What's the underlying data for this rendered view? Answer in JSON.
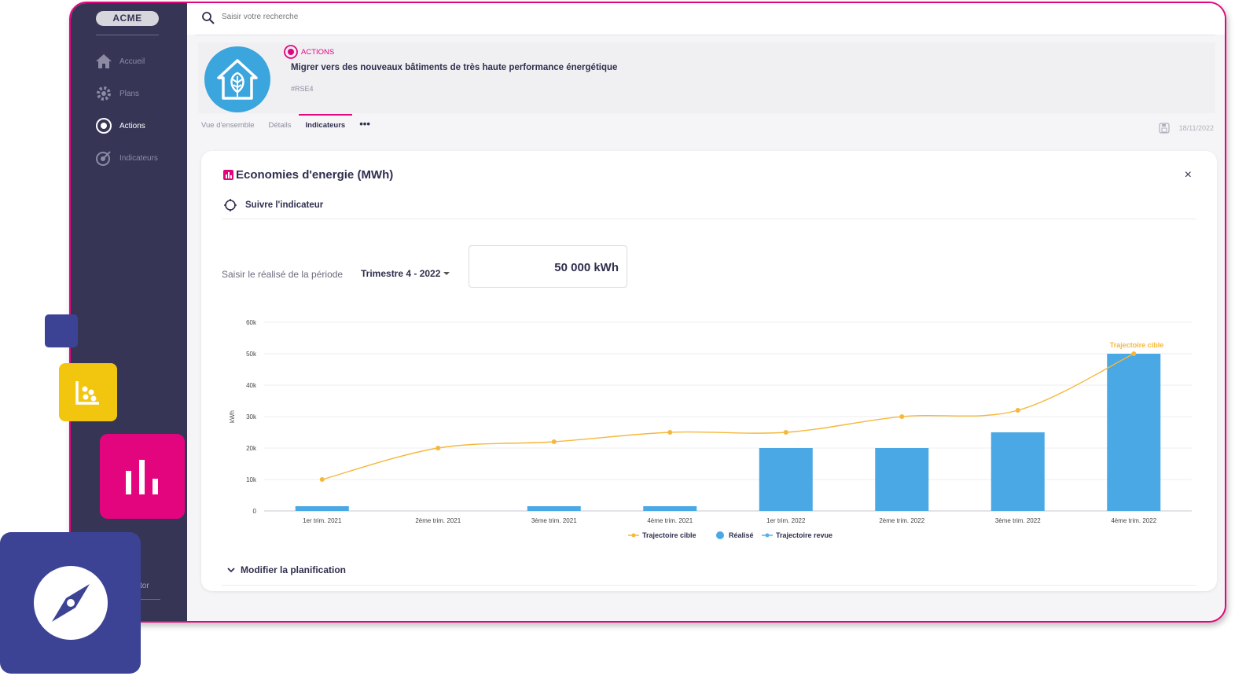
{
  "brand": {
    "logo_text": "ACME",
    "accent": "#e2057e",
    "sidebar_bg": "#363555",
    "bar_color": "#4aa8e4",
    "line_color": "#f5b83c"
  },
  "sidebar": {
    "items": [
      {
        "label": "Accueil",
        "icon": "home-icon",
        "active": false
      },
      {
        "label": "Plans",
        "icon": "gear-icon",
        "active": false
      },
      {
        "label": "Actions",
        "icon": "target-icon",
        "active": true
      },
      {
        "label": "Indicateurs",
        "icon": "dart-target-icon",
        "active": false
      }
    ],
    "bottom_label": "tor"
  },
  "search": {
    "placeholder": "Saisir votre recherche",
    "icon": "search-icon"
  },
  "action": {
    "type_label": "ACTIONS",
    "title": "Migrer vers des nouveaux bâtiments de très haute performance énergétique",
    "tag": "#RSE4",
    "icon": "leaf-house-icon"
  },
  "tabs": [
    {
      "label": "Vue d'ensemble",
      "active": false
    },
    {
      "label": "Détails",
      "active": false
    },
    {
      "label": "Indicateurs",
      "active": true
    }
  ],
  "tab_more": "•••",
  "date": "18/11/2022",
  "card": {
    "title": "Economies d'energie (MWh)",
    "close": "×",
    "follow_label": "Suivre l'indicateur",
    "period_label": "Saisir le réalisé de la période",
    "period_value": "Trimestre 4 - 2022",
    "input_value": "50 000 kWh",
    "modify_label": "Modifier la planification"
  },
  "chart_data": {
    "type": "bar",
    "categories": [
      "1er trim. 2021",
      "2ème trim. 2021",
      "3ème trim. 2021",
      "4ème trim. 2021",
      "1er trim. 2022",
      "2ème trim. 2022",
      "3ème trim. 2022",
      "4ème trim. 2022"
    ],
    "ylabel": "kWh",
    "ylim": [
      0,
      60000
    ],
    "y_ticks": [
      "0",
      "10k",
      "20k",
      "30k",
      "40k",
      "50k",
      "60k"
    ],
    "y_tick_values": [
      0,
      10000,
      20000,
      30000,
      40000,
      50000,
      60000
    ],
    "series": [
      {
        "name": "Réalisé",
        "type": "bar",
        "values": [
          1500,
          0,
          1500,
          1500,
          20000,
          20000,
          25000,
          50000
        ]
      },
      {
        "name": "Trajectoire cible",
        "type": "line",
        "values": [
          10000,
          20000,
          22000,
          25000,
          25000,
          30000,
          32000,
          50000
        ]
      }
    ],
    "annotation": "Trajectoire cible",
    "legend": [
      "Trajectoire cible",
      "Réalisé",
      "Trajectoire revue"
    ],
    "legend_placement": "bottom",
    "grid": true
  }
}
